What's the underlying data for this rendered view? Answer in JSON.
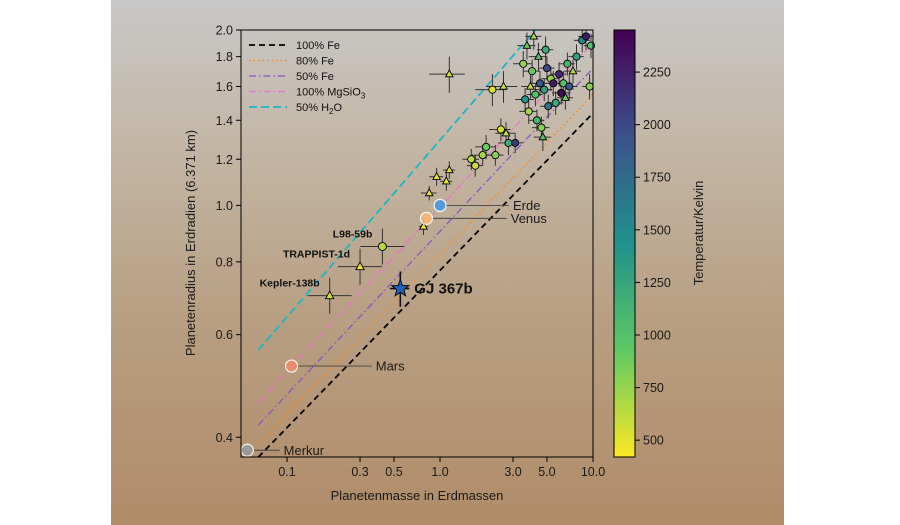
{
  "chart_data": {
    "type": "scatter",
    "xlabel": "Planetenmasse in Erdmassen",
    "ylabel": "Planetenradius in Erdradien (6.371 km)",
    "x_scale": "log",
    "y_scale": "log",
    "xlim": [
      0.05,
      10.0
    ],
    "ylim": [
      0.37,
      2.0
    ],
    "x_ticks": [
      {
        "value": 0.1,
        "label": "0.1"
      },
      {
        "value": 0.3,
        "label": "0.3"
      },
      {
        "value": 0.5,
        "label": "0.5"
      },
      {
        "value": 1.0,
        "label": "1.0"
      },
      {
        "value": 3.0,
        "label": "3.0"
      },
      {
        "value": 5.0,
        "label": "5.0"
      },
      {
        "value": 10.0,
        "label": "10.0"
      }
    ],
    "y_ticks": [
      {
        "value": 0.4,
        "label": "0.4"
      },
      {
        "value": 0.6,
        "label": "0.6"
      },
      {
        "value": 0.8,
        "label": "0.8"
      },
      {
        "value": 1.0,
        "label": "1.0"
      },
      {
        "value": 1.2,
        "label": "1.2"
      },
      {
        "value": 1.4,
        "label": "1.4"
      },
      {
        "value": 1.6,
        "label": "1.6"
      },
      {
        "value": 1.8,
        "label": "1.8"
      },
      {
        "value": 2.0,
        "label": "2.0"
      }
    ],
    "grid": false,
    "legend_position": "top-left",
    "colorbar": {
      "label": "Temperatur/Kelvin",
      "min": 420,
      "max": 2450,
      "ticks": [
        500,
        750,
        1000,
        1250,
        1500,
        1750,
        2000,
        2250
      ],
      "colormap": "viridis",
      "stops": [
        "#fde725",
        "#5ec962",
        "#21918c",
        "#3b528b",
        "#440154"
      ]
    },
    "composition_lines": [
      {
        "name": "100% Fe",
        "name_sub": "",
        "color": "#000000",
        "dash": "6,4",
        "width": 1.8,
        "mass_range": [
          0.065,
          10.0
        ],
        "radius_range": [
          0.37,
          1.44
        ]
      },
      {
        "name": "80% Fe",
        "name_sub": "",
        "color": "#ff8c1a",
        "dash": "1.5,3",
        "width": 1.6,
        "mass_range": [
          0.065,
          10.0
        ],
        "radius_range": [
          0.39,
          1.55
        ]
      },
      {
        "name": "50% Fe",
        "name_sub": "",
        "color": "#8a56c8",
        "dash": "7,3,1.5,3",
        "width": 1.3,
        "mass_range": [
          0.065,
          10.0
        ],
        "radius_range": [
          0.42,
          1.72
        ]
      },
      {
        "name": "100% MgSiO",
        "name_sub": "3",
        "color": "#ee6fd0",
        "dash": "7,3,1.5,3",
        "width": 1.3,
        "mass_range": [
          0.065,
          10.0
        ],
        "radius_range": [
          0.46,
          1.9
        ]
      },
      {
        "name": "50% H",
        "name_sub": "2",
        "name_tail": "O",
        "color": "#19b7c8",
        "dash": "8,4",
        "width": 1.8,
        "mass_range": [
          0.065,
          4.2
        ],
        "radius_range": [
          0.565,
          2.0
        ]
      }
    ],
    "highlight": {
      "label": "GJ 367b",
      "mass": 0.55,
      "radius": 0.72,
      "mass_err": 0.08,
      "radius_err": 0.05,
      "color": "#1f5fbf"
    },
    "solar_system": [
      {
        "name": "Merkur",
        "mass": 0.055,
        "radius": 0.38,
        "color": "#9a9a9a",
        "label_mass": 0.095,
        "label_radius": 0.38
      },
      {
        "name": "Mars",
        "mass": 0.107,
        "radius": 0.53,
        "color": "#f08a6a",
        "label_mass": 0.38,
        "label_radius": 0.53
      },
      {
        "name": "Venus",
        "mass": 0.815,
        "radius": 0.95,
        "color": "#f7b978",
        "label_mass": 2.9,
        "label_radius": 0.95
      },
      {
        "name": "Erde",
        "mass": 1.0,
        "radius": 1.0,
        "color": "#4a9ae0",
        "label_mass": 3.0,
        "label_radius": 1.0
      }
    ],
    "labeled_exoplanets": [
      {
        "name": "L98-59b",
        "mass": 0.42,
        "radius": 0.85,
        "temp": 640,
        "shape": "circle"
      },
      {
        "name": "TRAPPIST-1d",
        "mass": 0.3,
        "radius": 0.785,
        "temp": 490,
        "shape": "triangle"
      },
      {
        "name": "Kepler-138b",
        "mass": 0.19,
        "radius": 0.7,
        "temp": 580,
        "shape": "triangle"
      }
    ],
    "exoplanets": [
      {
        "mass": 1.15,
        "radius": 1.68,
        "temp": 550,
        "shape": "triangle",
        "xe": 0.3,
        "ye": 0.12
      },
      {
        "mass": 2.2,
        "radius": 1.58,
        "temp": 520,
        "shape": "circle",
        "xe": 0.5,
        "ye": 0.1
      },
      {
        "mass": 2.6,
        "radius": 1.6,
        "temp": 600,
        "shape": "triangle",
        "xe": 0.6,
        "ye": 0.1
      },
      {
        "mass": 0.85,
        "radius": 1.05,
        "temp": 530,
        "shape": "triangle",
        "xe": 0.1,
        "ye": 0.03
      },
      {
        "mass": 0.95,
        "radius": 1.12,
        "temp": 500,
        "shape": "triangle",
        "xe": 0.1,
        "ye": 0.04
      },
      {
        "mass": 1.1,
        "radius": 1.1,
        "temp": 510,
        "shape": "triangle",
        "xe": 0.1,
        "ye": 0.04
      },
      {
        "mass": 1.15,
        "radius": 1.15,
        "temp": 520,
        "shape": "triangle",
        "xe": 0.1,
        "ye": 0.04
      },
      {
        "mass": 0.78,
        "radius": 0.92,
        "temp": 480,
        "shape": "triangle",
        "xe": 0.05,
        "ye": 0.03
      },
      {
        "mass": 1.6,
        "radius": 1.2,
        "temp": 620,
        "shape": "circle",
        "xe": 0.2,
        "ye": 0.05
      },
      {
        "mass": 1.7,
        "radius": 1.17,
        "temp": 560,
        "shape": "circle",
        "xe": 0.2,
        "ye": 0.05
      },
      {
        "mass": 1.9,
        "radius": 1.22,
        "temp": 700,
        "shape": "circle",
        "xe": 0.3,
        "ye": 0.05
      },
      {
        "mass": 2.0,
        "radius": 1.26,
        "temp": 900,
        "shape": "circle",
        "xe": 0.3,
        "ye": 0.06
      },
      {
        "mass": 2.3,
        "radius": 1.22,
        "temp": 800,
        "shape": "circle",
        "xe": 0.3,
        "ye": 0.05
      },
      {
        "mass": 2.5,
        "radius": 1.35,
        "temp": 550,
        "shape": "circle",
        "xe": 0.4,
        "ye": 0.06
      },
      {
        "mass": 2.7,
        "radius": 1.33,
        "temp": 620,
        "shape": "triangle",
        "xe": 0.4,
        "ye": 0.06
      },
      {
        "mass": 2.8,
        "radius": 1.28,
        "temp": 1200,
        "shape": "circle",
        "xe": 0.4,
        "ye": 0.06
      },
      {
        "mass": 3.1,
        "radius": 1.28,
        "temp": 2100,
        "shape": "circle",
        "xe": 0.4,
        "ye": 0.05
      },
      {
        "mass": 3.6,
        "radius": 1.52,
        "temp": 1400,
        "shape": "circle",
        "xe": 0.5,
        "ye": 0.07
      },
      {
        "mass": 3.8,
        "radius": 1.45,
        "temp": 700,
        "shape": "circle",
        "xe": 0.5,
        "ye": 0.07
      },
      {
        "mass": 3.9,
        "radius": 1.6,
        "temp": 600,
        "shape": "triangle",
        "xe": 0.5,
        "ye": 0.08
      },
      {
        "mass": 4.0,
        "radius": 1.7,
        "temp": 900,
        "shape": "circle",
        "xe": 0.5,
        "ye": 0.08
      },
      {
        "mass": 4.2,
        "radius": 1.55,
        "temp": 1000,
        "shape": "circle",
        "xe": 0.5,
        "ye": 0.07
      },
      {
        "mass": 4.3,
        "radius": 1.4,
        "temp": 1100,
        "shape": "circle",
        "xe": 0.5,
        "ye": 0.06
      },
      {
        "mass": 4.5,
        "radius": 1.62,
        "temp": 1900,
        "shape": "circle",
        "xe": 0.6,
        "ye": 0.08
      },
      {
        "mass": 4.6,
        "radius": 1.36,
        "temp": 800,
        "shape": "circle",
        "xe": 0.6,
        "ye": 0.06
      },
      {
        "mass": 4.7,
        "radius": 1.31,
        "temp": 1000,
        "shape": "triangle",
        "xe": 0.6,
        "ye": 0.07
      },
      {
        "mass": 4.8,
        "radius": 1.58,
        "temp": 1300,
        "shape": "circle",
        "xe": 0.6,
        "ye": 0.07
      },
      {
        "mass": 5.0,
        "radius": 1.72,
        "temp": 2000,
        "shape": "circle",
        "xe": 0.6,
        "ye": 0.08
      },
      {
        "mass": 5.1,
        "radius": 1.48,
        "temp": 1700,
        "shape": "circle",
        "xe": 0.6,
        "ye": 0.07
      },
      {
        "mass": 5.3,
        "radius": 1.65,
        "temp": 750,
        "shape": "circle",
        "xe": 0.7,
        "ye": 0.08
      },
      {
        "mass": 5.5,
        "radius": 1.62,
        "temp": 2300,
        "shape": "circle",
        "xe": 0.7,
        "ye": 0.08
      },
      {
        "mass": 5.7,
        "radius": 1.5,
        "temp": 1200,
        "shape": "circle",
        "xe": 0.7,
        "ye": 0.07
      },
      {
        "mass": 6.0,
        "radius": 1.68,
        "temp": 2200,
        "shape": "circle",
        "xe": 0.7,
        "ye": 0.08
      },
      {
        "mass": 6.2,
        "radius": 1.56,
        "temp": 2400,
        "shape": "circle",
        "xe": 0.8,
        "ye": 0.07
      },
      {
        "mass": 6.4,
        "radius": 1.62,
        "temp": 1000,
        "shape": "circle",
        "xe": 0.8,
        "ye": 0.08
      },
      {
        "mass": 6.6,
        "radius": 1.53,
        "temp": 850,
        "shape": "triangle",
        "xe": 0.8,
        "ye": 0.07
      },
      {
        "mass": 6.8,
        "radius": 1.75,
        "temp": 1100,
        "shape": "circle",
        "xe": 0.8,
        "ye": 0.08
      },
      {
        "mass": 7.0,
        "radius": 1.6,
        "temp": 1900,
        "shape": "circle",
        "xe": 0.9,
        "ye": 0.08
      },
      {
        "mass": 7.4,
        "radius": 1.7,
        "temp": 650,
        "shape": "triangle",
        "xe": 0.9,
        "ye": 0.08
      },
      {
        "mass": 7.8,
        "radius": 1.8,
        "temp": 1300,
        "shape": "circle",
        "xe": 0.9,
        "ye": 0.09
      },
      {
        "mass": 8.5,
        "radius": 1.92,
        "temp": 1500,
        "shape": "circle",
        "xe": 1.0,
        "ye": 0.09
      },
      {
        "mass": 9.0,
        "radius": 1.95,
        "temp": 2300,
        "shape": "circle",
        "xe": 1.0,
        "ye": 0.1
      },
      {
        "mass": 9.5,
        "radius": 1.6,
        "temp": 800,
        "shape": "circle",
        "xe": 1.0,
        "ye": 0.08
      },
      {
        "mass": 9.7,
        "radius": 1.88,
        "temp": 1000,
        "shape": "circle",
        "xe": 1.0,
        "ye": 0.09
      },
      {
        "mass": 3.7,
        "radius": 1.88,
        "temp": 900,
        "shape": "triangle",
        "xe": 0.5,
        "ye": 0.1
      },
      {
        "mass": 4.1,
        "radius": 1.95,
        "temp": 700,
        "shape": "triangle",
        "xe": 0.5,
        "ye": 0.1
      },
      {
        "mass": 4.4,
        "radius": 1.8,
        "temp": 1000,
        "shape": "triangle",
        "xe": 0.6,
        "ye": 0.1
      },
      {
        "mass": 4.9,
        "radius": 1.85,
        "temp": 1200,
        "shape": "circle",
        "xe": 0.6,
        "ye": 0.1
      },
      {
        "mass": 3.5,
        "radius": 1.75,
        "temp": 750,
        "shape": "circle",
        "xe": 0.5,
        "ye": 0.09
      }
    ]
  }
}
